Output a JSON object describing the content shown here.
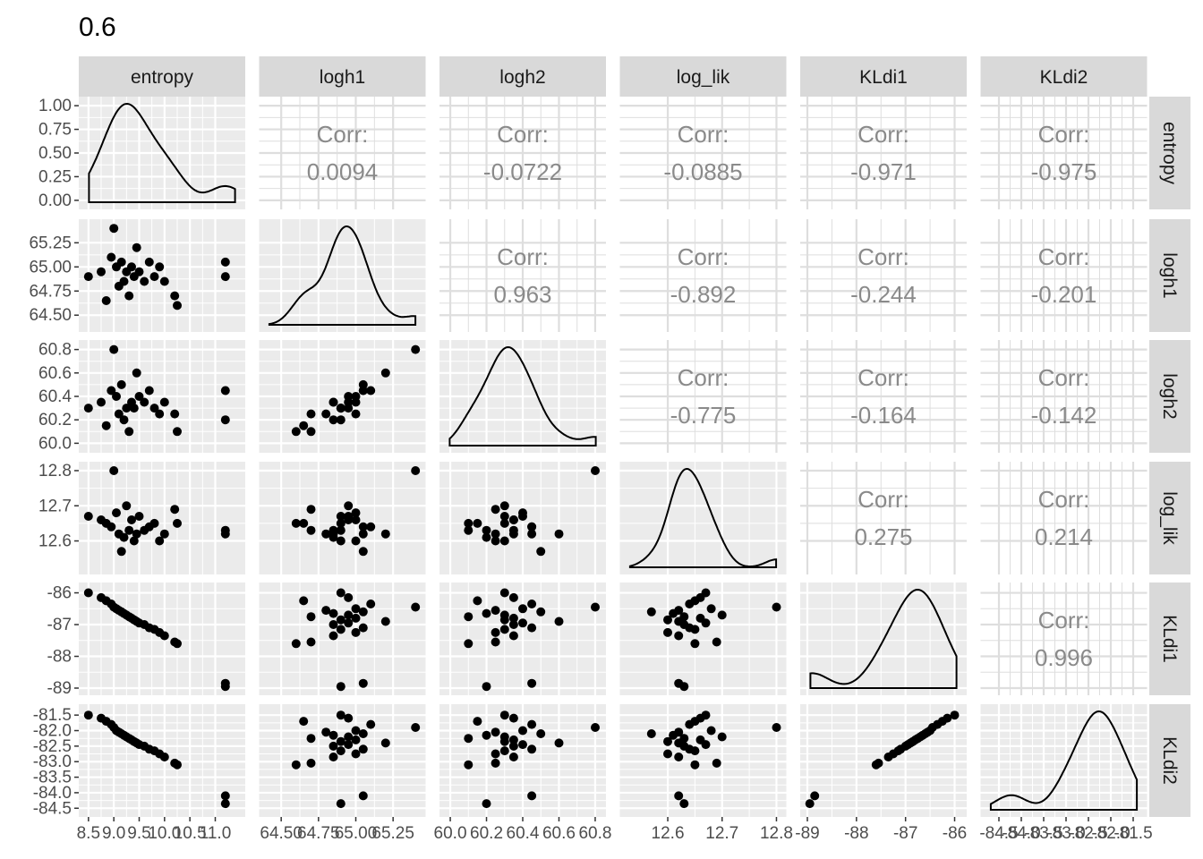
{
  "chart_data": {
    "type": "scatter-matrix",
    "title": "0.6",
    "variables": [
      "entropy",
      "logh1",
      "logh2",
      "log_lik",
      "KLdi1",
      "KLdi2"
    ],
    "corr_label": "Corr:",
    "correlations": [
      [
        "",
        "0.0094",
        "-0.0722",
        "-0.0885",
        "-0.971",
        "-0.975"
      ],
      [
        "",
        "",
        "0.963",
        "-0.892",
        "-0.244",
        "-0.201"
      ],
      [
        "",
        "",
        "",
        "-0.775",
        "-0.164",
        "-0.142"
      ],
      [
        "",
        "",
        "",
        "",
        "0.275",
        "0.214"
      ],
      [
        "",
        "",
        "",
        "",
        "",
        "0.996"
      ],
      [
        "",
        "",
        "",
        "",
        "",
        ""
      ]
    ],
    "x_axes": [
      {
        "range": [
          8.45,
          11.45
        ],
        "ticks": [
          8.5,
          9.0,
          9.5,
          10.0,
          10.5,
          11.0
        ],
        "labels": [
          "8.5",
          "9.0",
          "9.5",
          "10.0",
          "10.5",
          "11.0"
        ]
      },
      {
        "range": [
          64.4,
          65.42
        ],
        "ticks": [
          64.5,
          64.75,
          65.0,
          65.25
        ],
        "labels": [
          "64.50",
          "64.75",
          "65.00",
          "65.25"
        ]
      },
      {
        "range": [
          59.98,
          60.82
        ],
        "ticks": [
          60.0,
          60.2,
          60.4,
          60.6,
          60.8
        ],
        "labels": [
          "60.0",
          "60.2",
          "60.4",
          "60.6",
          "60.8"
        ]
      },
      {
        "range": [
          12.525,
          12.805
        ],
        "ticks": [
          12.6,
          12.7,
          12.8
        ],
        "labels": [
          "12.6",
          "12.7",
          "12.8"
        ]
      },
      {
        "range": [
          -89.0,
          -85.9
        ],
        "ticks": [
          -89,
          -88,
          -87,
          -86
        ],
        "labels": [
          "-89",
          "-88",
          "-87",
          "-86"
        ]
      },
      {
        "range": [
          -84.75,
          -81.35
        ],
        "ticks": [
          -84.5,
          -84.0,
          -83.5,
          -83.0,
          -82.5,
          -82.0,
          -81.5
        ],
        "labels": [
          "-84.5",
          "-84.0",
          "-83.5",
          "-83.0",
          "-82.5",
          "-82.0",
          "-81.5"
        ]
      }
    ],
    "y_axes": [
      {
        "range": [
          -0.02,
          1.02
        ],
        "ticks": [
          0,
          0.25,
          0.5,
          0.75,
          1.0
        ],
        "labels": [
          "0.00",
          "0.25",
          "0.50",
          "0.75",
          "1.00"
        ]
      },
      {
        "range": [
          64.4,
          65.42
        ],
        "ticks": [
          64.5,
          64.75,
          65.0,
          65.25
        ],
        "labels": [
          "64.50",
          "64.75",
          "65.00",
          "65.25"
        ]
      },
      {
        "range": [
          59.98,
          60.82
        ],
        "ticks": [
          60.0,
          60.2,
          60.4,
          60.6,
          60.8
        ],
        "labels": [
          "60.0",
          "60.2",
          "60.4",
          "60.6",
          "60.8"
        ]
      },
      {
        "range": [
          12.525,
          12.805
        ],
        "ticks": [
          12.6,
          12.7,
          12.8
        ],
        "labels": [
          "12.6",
          "12.7",
          "12.8"
        ]
      },
      {
        "range": [
          -89.0,
          -85.9
        ],
        "ticks": [
          -89,
          -88,
          -87,
          -86
        ],
        "labels": [
          "-89",
          "-88",
          "-87",
          "-86"
        ]
      },
      {
        "range": [
          -84.55,
          -81.38
        ],
        "ticks": [
          -84.5,
          -84.0,
          -83.5,
          -83.0,
          -82.5,
          -82.0,
          -81.5
        ],
        "labels": [
          "-84.5",
          "-84.0",
          "-83.5",
          "-83.0",
          "-82.5",
          "-82.0",
          "-81.5"
        ]
      }
    ],
    "observations": {
      "columns": [
        "entropy",
        "logh1",
        "logh2",
        "log_lik",
        "KLdi1",
        "KLdi2"
      ],
      "rows": [
        [
          8.5,
          64.9,
          60.3,
          12.67,
          -86.0,
          -81.5
        ],
        [
          8.75,
          64.95,
          60.35,
          12.66,
          -86.15,
          -81.6
        ],
        [
          8.85,
          64.65,
          60.15,
          12.65,
          -86.25,
          -81.7
        ],
        [
          8.95,
          65.1,
          60.45,
          12.64,
          -86.35,
          -81.8
        ],
        [
          9.0,
          65.4,
          60.8,
          12.8,
          -86.45,
          -81.9
        ],
        [
          9.05,
          65.0,
          60.4,
          12.68,
          -86.5,
          -82.0
        ],
        [
          9.1,
          64.8,
          60.25,
          12.62,
          -86.55,
          -82.05
        ],
        [
          9.15,
          65.05,
          60.5,
          12.57,
          -86.6,
          -82.1
        ],
        [
          9.2,
          64.85,
          60.2,
          12.61,
          -86.65,
          -82.15
        ],
        [
          9.25,
          64.95,
          60.3,
          12.7,
          -86.7,
          -82.2
        ],
        [
          9.3,
          64.7,
          60.1,
          12.63,
          -86.75,
          -82.25
        ],
        [
          9.35,
          65.0,
          60.35,
          12.66,
          -86.8,
          -82.3
        ],
        [
          9.4,
          64.9,
          60.3,
          12.6,
          -86.85,
          -82.35
        ],
        [
          9.45,
          65.2,
          60.6,
          12.62,
          -86.9,
          -82.4
        ],
        [
          9.5,
          64.95,
          60.4,
          12.67,
          -86.95,
          -82.45
        ],
        [
          9.6,
          64.85,
          60.35,
          12.63,
          -87.0,
          -82.5
        ],
        [
          9.7,
          65.05,
          60.45,
          12.64,
          -87.1,
          -82.6
        ],
        [
          9.8,
          64.9,
          60.3,
          12.65,
          -87.15,
          -82.65
        ],
        [
          9.9,
          65.0,
          60.25,
          12.6,
          -87.25,
          -82.75
        ],
        [
          10.0,
          64.85,
          60.35,
          12.62,
          -87.35,
          -82.85
        ],
        [
          10.2,
          64.7,
          60.25,
          12.69,
          -87.55,
          -83.05
        ],
        [
          10.25,
          64.6,
          60.1,
          12.65,
          -87.6,
          -83.1
        ],
        [
          11.2,
          65.05,
          60.45,
          12.62,
          -88.85,
          -84.1
        ],
        [
          11.2,
          64.9,
          60.2,
          12.63,
          -88.95,
          -84.35
        ]
      ]
    }
  }
}
